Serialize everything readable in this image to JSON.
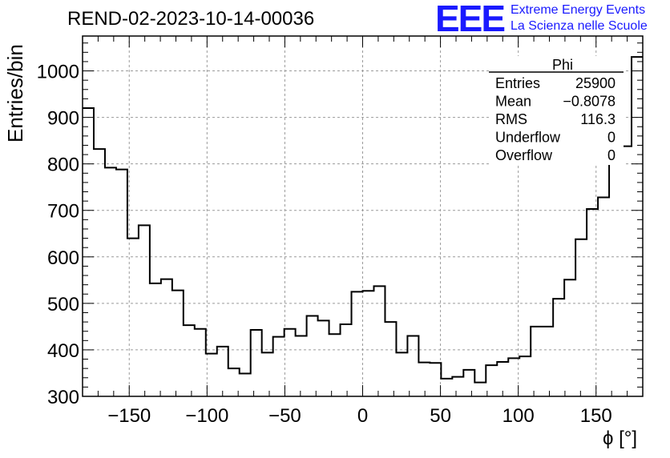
{
  "header": {
    "title": "REND-02-2023-10-14-00036",
    "logo_text": "EEE",
    "logo_line1": "Extreme Energy Events",
    "logo_line2": "La Scienza nelle Scuole"
  },
  "stats_box": {
    "name": "Phi",
    "rows": [
      {
        "label": "Entries",
        "value": "25900"
      },
      {
        "label": "Mean",
        "value": "−0.8078"
      },
      {
        "label": "RMS",
        "value": "116.3"
      },
      {
        "label": "Underflow",
        "value": "0"
      },
      {
        "label": "Overflow",
        "value": "0"
      }
    ]
  },
  "chart_data": {
    "type": "histogram",
    "xlabel": "ϕ [°]",
    "ylabel": "Entries/bin",
    "xlim": [
      -180,
      180
    ],
    "ylim": [
      300,
      1075
    ],
    "grid": true,
    "bin_width": 7.2,
    "x_ticks": [
      -150,
      -100,
      -50,
      0,
      50,
      100,
      150
    ],
    "x_tick_labels": [
      "−150",
      "−100",
      "−50",
      "0",
      "50",
      "100",
      "150"
    ],
    "y_ticks": [
      300,
      400,
      500,
      600,
      700,
      800,
      900,
      1000
    ],
    "bin_edges_start": -180,
    "values": [
      920,
      832,
      792,
      788,
      640,
      668,
      543,
      552,
      528,
      453,
      445,
      392,
      407,
      360,
      349,
      443,
      394,
      428,
      445,
      430,
      473,
      463,
      434,
      455,
      525,
      527,
      537,
      460,
      394,
      430,
      373,
      372,
      338,
      342,
      357,
      330,
      367,
      374,
      382,
      386,
      450,
      450,
      510,
      551,
      638,
      703,
      728,
      845,
      838,
      1030
    ]
  }
}
